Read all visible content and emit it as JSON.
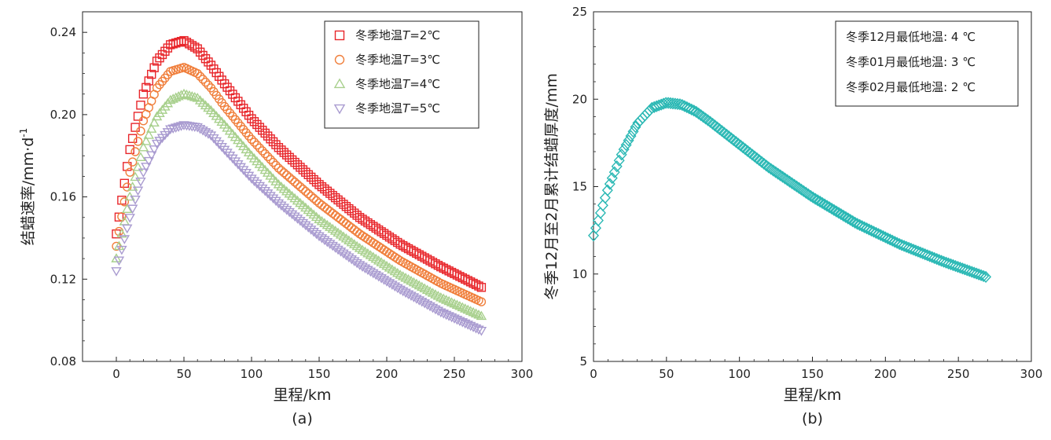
{
  "chart_data": [
    {
      "type": "scatter",
      "caption": "(a)",
      "xlabel": "里程/km",
      "ylabel_main": "结蜡速率/mm·d",
      "ylabel_sup": "-1",
      "xlim": [
        -25,
        300
      ],
      "ylim": [
        0.08,
        0.25
      ],
      "xticks": [
        "0",
        "50",
        "100",
        "150",
        "200",
        "250",
        "300"
      ],
      "yticks": [
        "0.08",
        "0.12",
        "0.16",
        "0.20",
        "0.24"
      ],
      "legend_position": "top-right",
      "series": [
        {
          "name": "T=2℃",
          "legend_prefix": "冬季地温",
          "legend_var": "T",
          "legend_suffix": "=2℃",
          "marker": "square",
          "color": "#e8262b",
          "x": [
            0,
            10,
            20,
            30,
            40,
            50,
            60,
            70,
            80,
            100,
            120,
            150,
            180,
            210,
            240,
            270
          ],
          "y": [
            0.142,
            0.183,
            0.21,
            0.226,
            0.234,
            0.236,
            0.232,
            0.224,
            0.215,
            0.198,
            0.184,
            0.166,
            0.15,
            0.137,
            0.126,
            0.116
          ]
        },
        {
          "name": "T=3℃",
          "legend_prefix": "冬季地温",
          "legend_var": "T",
          "legend_suffix": "=3℃",
          "marker": "circle",
          "color": "#f07f3c",
          "x": [
            0,
            10,
            20,
            30,
            40,
            50,
            60,
            70,
            80,
            100,
            120,
            150,
            180,
            210,
            240,
            270
          ],
          "y": [
            0.136,
            0.172,
            0.197,
            0.213,
            0.221,
            0.223,
            0.22,
            0.213,
            0.204,
            0.188,
            0.174,
            0.157,
            0.142,
            0.129,
            0.118,
            0.109
          ]
        },
        {
          "name": "T=4℃",
          "legend_prefix": "冬季地温",
          "legend_var": "T",
          "legend_suffix": "=4℃",
          "marker": "triangle-up",
          "color": "#a8d08d",
          "x": [
            0,
            10,
            20,
            30,
            40,
            50,
            60,
            70,
            80,
            100,
            120,
            150,
            180,
            210,
            240,
            270
          ],
          "y": [
            0.13,
            0.16,
            0.184,
            0.199,
            0.207,
            0.21,
            0.208,
            0.202,
            0.195,
            0.18,
            0.166,
            0.149,
            0.135,
            0.122,
            0.111,
            0.102
          ]
        },
        {
          "name": "T=5℃",
          "legend_prefix": "冬季地温",
          "legend_var": "T",
          "legend_suffix": "=5℃",
          "marker": "triangle-down",
          "color": "#a99bd0",
          "x": [
            0,
            10,
            20,
            30,
            40,
            50,
            60,
            70,
            80,
            100,
            120,
            150,
            180,
            210,
            240,
            270
          ],
          "y": [
            0.124,
            0.15,
            0.172,
            0.186,
            0.193,
            0.195,
            0.194,
            0.19,
            0.183,
            0.169,
            0.157,
            0.141,
            0.127,
            0.115,
            0.104,
            0.095
          ]
        }
      ]
    },
    {
      "type": "scatter",
      "caption": "(b)",
      "xlabel": "里程/km",
      "ylabel": "冬季12月至2月累计结蜡厚度/mm",
      "xlim": [
        0,
        300
      ],
      "ylim": [
        5,
        25
      ],
      "xticks": [
        "0",
        "50",
        "100",
        "150",
        "200",
        "250",
        "300"
      ],
      "yticks": [
        "5",
        "10",
        "15",
        "20",
        "25"
      ],
      "legend_position": "top-right",
      "legend": [
        "冬季12月最低地温: 4 ℃",
        "冬季01月最低地温: 3 ℃",
        "冬季02月最低地温: 2 ℃"
      ],
      "series": [
        {
          "marker": "diamond",
          "color": "#2ab8b4",
          "x": [
            0,
            10,
            20,
            30,
            40,
            50,
            60,
            70,
            80,
            100,
            120,
            150,
            180,
            210,
            240,
            270
          ],
          "y": [
            12.2,
            14.9,
            17.0,
            18.6,
            19.5,
            19.8,
            19.7,
            19.3,
            18.7,
            17.4,
            16.1,
            14.4,
            12.9,
            11.7,
            10.7,
            9.8
          ]
        }
      ]
    }
  ]
}
